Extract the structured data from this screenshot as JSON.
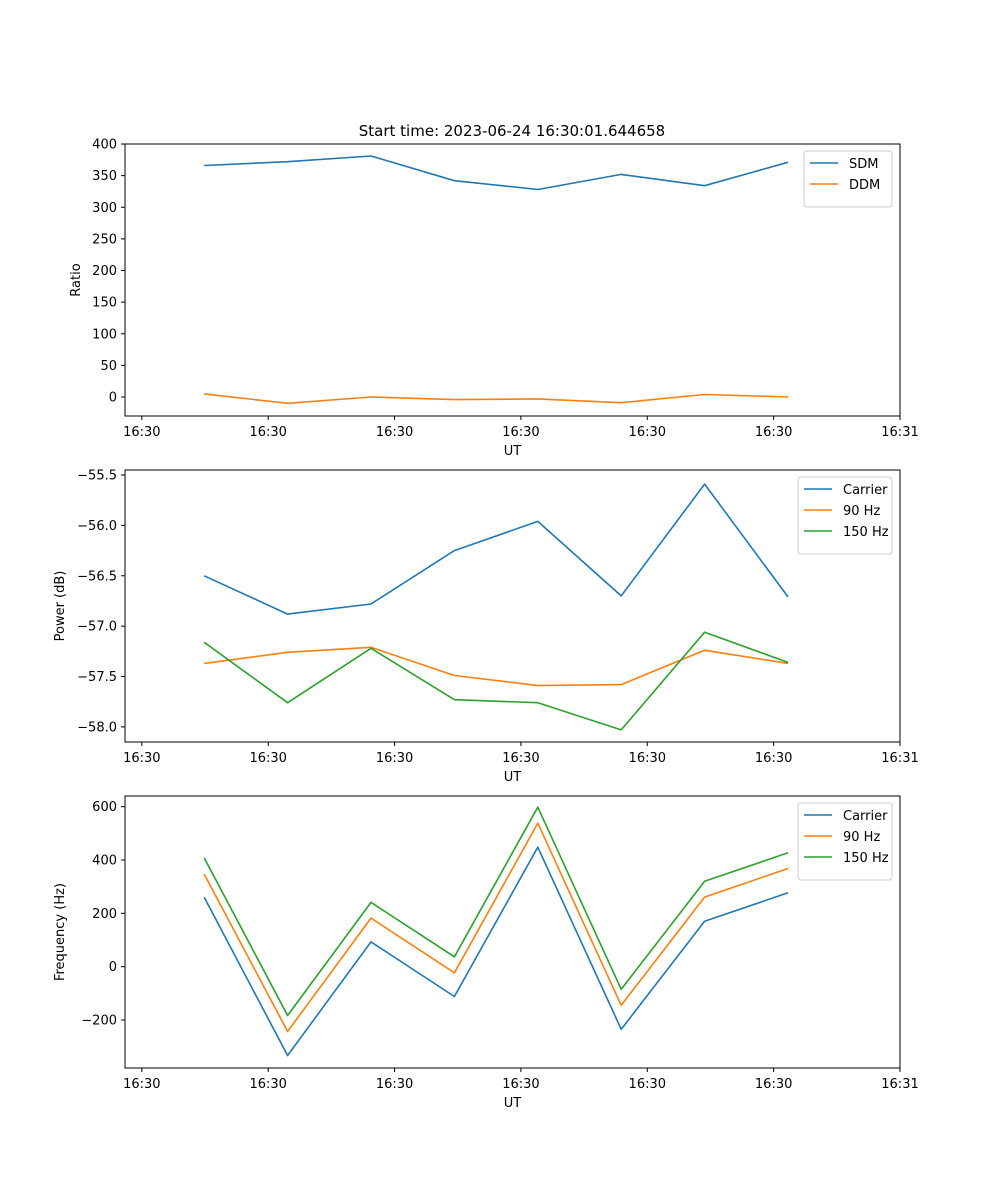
{
  "figure": {
    "suptitle": "Start time: 2023-06-24 16:30:01.644658"
  },
  "colors": {
    "c0": "#1f77b4",
    "c1": "#ff7f0e",
    "c2": "#2ca02c"
  },
  "chart_data": [
    {
      "type": "line",
      "title": "Start time: 2023-06-24 16:30:01.644658",
      "xlabel": "UT",
      "ylabel": "Ratio",
      "ylim": [
        -30,
        400
      ],
      "yticks": [
        0,
        50,
        100,
        150,
        200,
        250,
        300,
        350,
        400
      ],
      "xlim": [
        0,
        9.2
      ],
      "xticks": [
        0.2,
        1.7,
        3.2,
        4.7,
        6.2,
        7.7,
        9.2
      ],
      "xtick_labels": [
        "16:30",
        "16:30",
        "16:30",
        "16:30",
        "16:30",
        "16:30",
        "16:31"
      ],
      "x": [
        0.94,
        1.93,
        2.92,
        3.91,
        4.9,
        5.89,
        6.88,
        7.87
      ],
      "legend_position": "top-right",
      "grid": false,
      "series": [
        {
          "name": "SDM",
          "color_key": "c0",
          "values": [
            366,
            372,
            381,
            342,
            328,
            352,
            334,
            371
          ]
        },
        {
          "name": "DDM",
          "color_key": "c1",
          "values": [
            5,
            -10,
            0,
            -4,
            -3,
            -9,
            4,
            0
          ]
        }
      ]
    },
    {
      "type": "line",
      "xlabel": "UT",
      "ylabel": "Power (dB)",
      "ylim": [
        -58.15,
        -55.45
      ],
      "yticks": [
        -58.0,
        -57.5,
        -57.0,
        -56.5,
        -56.0,
        -55.5
      ],
      "ytick_labels": [
        "−58.0",
        "−57.5",
        "−57.0",
        "−56.5",
        "−56.0",
        "−55.5"
      ],
      "xlim": [
        0,
        9.2
      ],
      "xticks": [
        0.2,
        1.7,
        3.2,
        4.7,
        6.2,
        7.7,
        9.2
      ],
      "xtick_labels": [
        "16:30",
        "16:30",
        "16:30",
        "16:30",
        "16:30",
        "16:30",
        "16:31"
      ],
      "x": [
        0.94,
        1.93,
        2.92,
        3.91,
        4.9,
        5.89,
        6.88,
        7.87
      ],
      "legend_position": "top-right",
      "grid": false,
      "series": [
        {
          "name": "Carrier",
          "color_key": "c0",
          "values": [
            -56.5,
            -56.88,
            -56.78,
            -56.25,
            -55.96,
            -56.7,
            -55.59,
            -56.71
          ]
        },
        {
          "name": "90 Hz",
          "color_key": "c1",
          "values": [
            -57.37,
            -57.26,
            -57.21,
            -57.49,
            -57.59,
            -57.58,
            -57.24,
            -57.37
          ]
        },
        {
          "name": "150 Hz",
          "color_key": "c2",
          "values": [
            -57.16,
            -57.76,
            -57.22,
            -57.73,
            -57.76,
            -58.03,
            -57.06,
            -57.36
          ]
        }
      ]
    },
    {
      "type": "line",
      "xlabel": "UT",
      "ylabel": "Frequency (Hz)",
      "ylim": [
        -380,
        640
      ],
      "yticks": [
        -200,
        0,
        200,
        400,
        600
      ],
      "ytick_labels": [
        "−200",
        "0",
        "200",
        "400",
        "600"
      ],
      "xlim": [
        0,
        9.2
      ],
      "xticks": [
        0.2,
        1.7,
        3.2,
        4.7,
        6.2,
        7.7,
        9.2
      ],
      "xtick_labels": [
        "16:30",
        "16:30",
        "16:30",
        "16:30",
        "16:30",
        "16:30",
        "16:31"
      ],
      "x": [
        0.94,
        1.93,
        2.92,
        3.91,
        4.9,
        5.89,
        6.88,
        7.87
      ],
      "legend_position": "top-right",
      "grid": false,
      "series": [
        {
          "name": "Carrier",
          "color_key": "c0",
          "values": [
            260,
            -333,
            93,
            -112,
            448,
            -235,
            170,
            277
          ]
        },
        {
          "name": "90 Hz",
          "color_key": "c1",
          "values": [
            347,
            -243,
            182,
            -23,
            538,
            -145,
            261,
            368
          ]
        },
        {
          "name": "150 Hz",
          "color_key": "c2",
          "values": [
            408,
            -183,
            241,
            37,
            598,
            -85,
            320,
            427
          ]
        }
      ]
    }
  ]
}
